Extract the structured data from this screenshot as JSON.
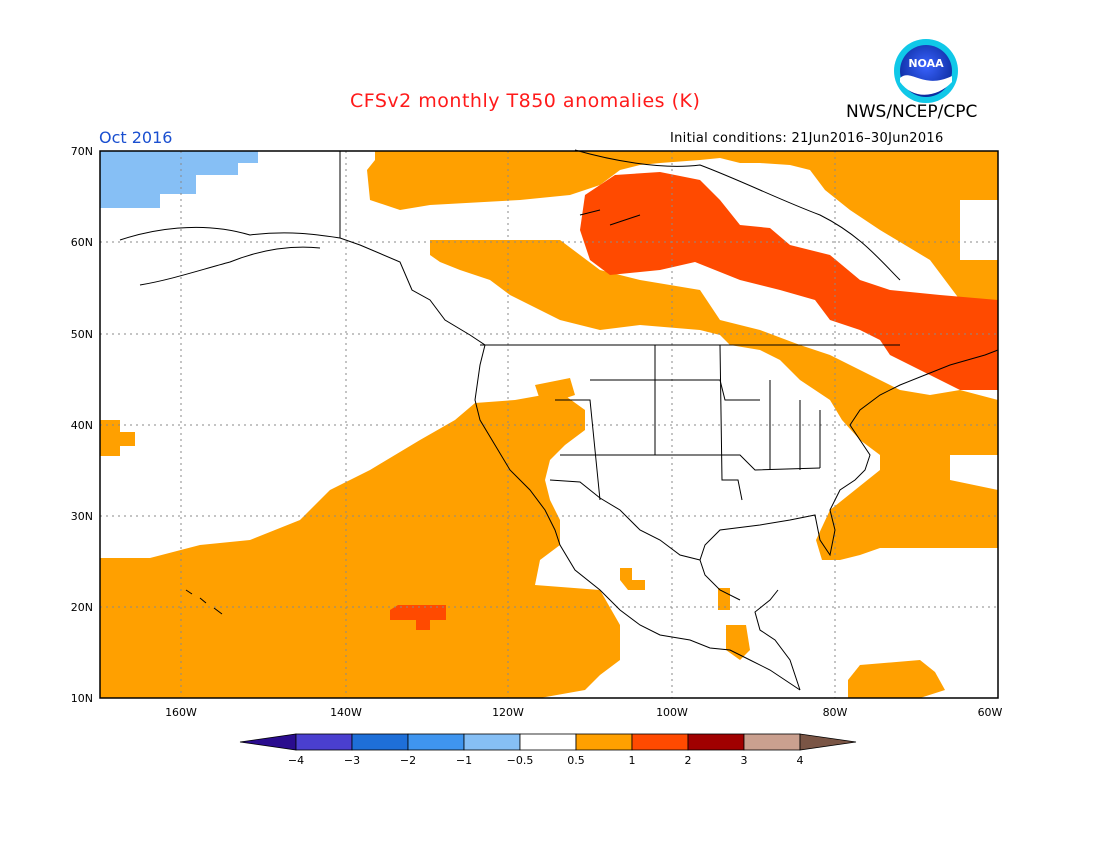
{
  "title": "CFSv2 monthly T850 anomalies (K)",
  "agency": "NWS/NCEP/CPC",
  "logo_text": "NOAA",
  "valid_month": "Oct 2016",
  "initial_conditions": "Initial conditions: 21Jun2016–30Jun2016",
  "lat_labels": [
    "70N",
    "60N",
    "50N",
    "40N",
    "30N",
    "20N",
    "10N"
  ],
  "lon_labels": [
    "160W",
    "140W",
    "120W",
    "100W",
    "80W",
    "60W"
  ],
  "colorbar": {
    "ticks": [
      "−4",
      "−3",
      "−2",
      "−1",
      "−0.5",
      "0.5",
      "1",
      "2",
      "3",
      "4"
    ],
    "colors": [
      "#2a0c8e",
      "#4a3fcf",
      "#1e6fd8",
      "#3f95ef",
      "#86bff5",
      "#ffffff",
      "#ffa000",
      "#ff4a00",
      "#a00000",
      "#caa08f",
      "#7a5545"
    ]
  }
}
